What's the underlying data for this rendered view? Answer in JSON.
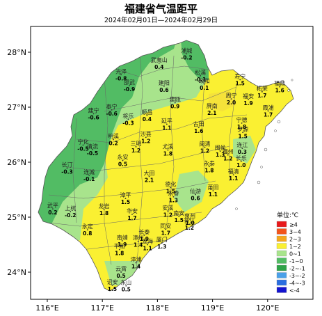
{
  "title": "福建省气温距平",
  "subtitle": "2024年02月01日—2024年02月29日",
  "axes": {
    "x_ticks": [
      {
        "value": 116,
        "label": "116°E"
      },
      {
        "value": 117,
        "label": "117°E"
      },
      {
        "value": 118,
        "label": "118°E"
      },
      {
        "value": 119,
        "label": "119°E"
      },
      {
        "value": 120,
        "label": "120°E"
      }
    ],
    "y_ticks": [
      {
        "value": 28,
        "label": "28°N"
      },
      {
        "value": 27,
        "label": "27°N"
      },
      {
        "value": 26,
        "label": "26°N"
      },
      {
        "value": 25,
        "label": "25°N"
      },
      {
        "value": 24,
        "label": "24°N"
      }
    ],
    "lon_range": [
      115.7,
      120.9
    ],
    "lat_range": [
      23.5,
      28.5
    ]
  },
  "legend": {
    "title": "单位:℃",
    "position": "bottom-right",
    "items": [
      {
        "label": "≥4",
        "color": "#e8191c"
      },
      {
        "label": "3~4",
        "color": "#f2541c"
      },
      {
        "label": "2~3",
        "color": "#f5a71c"
      },
      {
        "label": "1~2",
        "color": "#faf032"
      },
      {
        "label": "0~1",
        "color": "#a8e48c"
      },
      {
        "label": "-1~0",
        "color": "#52bc64"
      },
      {
        "label": "-2~-1",
        "color": "#2ea348"
      },
      {
        "label": "-3~-2",
        "color": "#4aa0e8"
      },
      {
        "label": "-4~-3",
        "color": "#2a6ee0"
      },
      {
        "label": "<-4",
        "color": "#1414d0"
      }
    ]
  },
  "stations": [
    {
      "name": "浦城",
      "value": "-0.2",
      "lon": 118.53,
      "lat": 27.92
    },
    {
      "name": "武夷山",
      "value": "0.4",
      "lon": 118.03,
      "lat": 27.75
    },
    {
      "name": "光泽",
      "value": "-0.8",
      "lon": 117.34,
      "lat": 27.54
    },
    {
      "name": "松溪",
      "value": "-0.1",
      "lon": 118.78,
      "lat": 27.52
    },
    {
      "name": "政和",
      "value": "0.1",
      "lon": 118.85,
      "lat": 27.37
    },
    {
      "name": "邵武",
      "value": "-0.9",
      "lon": 117.49,
      "lat": 27.34
    },
    {
      "name": "建阳",
      "value": "0.6",
      "lon": 118.12,
      "lat": 27.33
    },
    {
      "name": "周宁",
      "value": "2.0",
      "lon": 119.34,
      "lat": 27.1
    },
    {
      "name": "福安",
      "value": "1.9",
      "lon": 119.65,
      "lat": 27.09
    },
    {
      "name": "柘荣",
      "value": "1.7",
      "lon": 119.9,
      "lat": 27.23
    },
    {
      "name": "福鼎",
      "value": "1.6",
      "lon": 120.22,
      "lat": 27.32
    },
    {
      "name": "寿宁",
      "value": "1.5",
      "lon": 119.5,
      "lat": 27.45
    },
    {
      "name": "建瓯",
      "value": "0.9",
      "lon": 118.32,
      "lat": 27.03
    },
    {
      "name": "屏南",
      "value": "2.1",
      "lon": 118.99,
      "lat": 26.91
    },
    {
      "name": "霞浦",
      "value": "1.7",
      "lon": 120.01,
      "lat": 26.88
    },
    {
      "name": "宁德",
      "value": "1.8",
      "lon": 119.53,
      "lat": 26.66
    },
    {
      "name": "建宁",
      "value": "-0.6",
      "lon": 116.84,
      "lat": 26.83
    },
    {
      "name": "泰宁",
      "value": "-0.6",
      "lon": 117.17,
      "lat": 26.9
    },
    {
      "name": "将乐",
      "value": "-0.3",
      "lon": 117.47,
      "lat": 26.73
    },
    {
      "name": "顺昌",
      "value": "0.4",
      "lon": 117.81,
      "lat": 26.8
    },
    {
      "name": "延平",
      "value": "1.1",
      "lon": 118.17,
      "lat": 26.64
    },
    {
      "name": "古田",
      "value": "1.6",
      "lon": 118.75,
      "lat": 26.58
    },
    {
      "name": "罗源",
      "value": "1.5",
      "lon": 119.55,
      "lat": 26.49
    },
    {
      "name": "明溪",
      "value": "0.2",
      "lon": 117.2,
      "lat": 26.36
    },
    {
      "name": "沙县",
      "value": "1.2",
      "lon": 117.79,
      "lat": 26.4
    },
    {
      "name": "三明",
      "value": "1.2",
      "lon": 117.61,
      "lat": 26.23
    },
    {
      "name": "宁化",
      "value": "-0.5",
      "lon": 116.65,
      "lat": 26.26
    },
    {
      "name": "清流",
      "value": "-0.5",
      "lon": 116.82,
      "lat": 26.18
    },
    {
      "name": "尤溪",
      "value": "1.8",
      "lon": 118.19,
      "lat": 26.17
    },
    {
      "name": "闽清",
      "value": "1.2",
      "lon": 118.86,
      "lat": 26.22
    },
    {
      "name": "闽侯",
      "value": "1.3",
      "lon": 119.14,
      "lat": 26.15
    },
    {
      "name": "福州",
      "value": "1.2",
      "lon": 119.28,
      "lat": 26.08
    },
    {
      "name": "连江",
      "value": "0.3",
      "lon": 119.54,
      "lat": 26.2
    },
    {
      "name": "长乐",
      "value": "1.0",
      "lon": 119.52,
      "lat": 25.96
    },
    {
      "name": "永泰",
      "value": "1.8",
      "lon": 118.94,
      "lat": 25.87
    },
    {
      "name": "永安",
      "value": "0.5",
      "lon": 117.37,
      "lat": 25.98
    },
    {
      "name": "福清",
      "value": "1.1",
      "lon": 119.38,
      "lat": 25.72
    },
    {
      "name": "长汀",
      "value": "-0.3",
      "lon": 116.36,
      "lat": 25.84
    },
    {
      "name": "连城",
      "value": "-0.1",
      "lon": 116.76,
      "lat": 25.71
    },
    {
      "name": "大田",
      "value": "2.1",
      "lon": 117.85,
      "lat": 25.69
    },
    {
      "name": "德化",
      "value": "1.5",
      "lon": 118.24,
      "lat": 25.49
    },
    {
      "name": "永春",
      "value": "1.3",
      "lon": 118.29,
      "lat": 25.32
    },
    {
      "name": "仙游",
      "value": "0.6",
      "lon": 118.69,
      "lat": 25.36
    },
    {
      "name": "莆田",
      "value": "1.1",
      "lon": 119.01,
      "lat": 25.43
    },
    {
      "name": "漳平",
      "value": "1.5",
      "lon": 117.42,
      "lat": 25.29
    },
    {
      "name": "武平",
      "value": "0.2",
      "lon": 116.1,
      "lat": 25.1
    },
    {
      "name": "上杭",
      "value": "-0.2",
      "lon": 116.42,
      "lat": 25.05
    },
    {
      "name": "龙岩",
      "value": "1.8",
      "lon": 117.03,
      "lat": 25.09
    },
    {
      "name": "安溪",
      "value": "1.2",
      "lon": 118.19,
      "lat": 25.06
    },
    {
      "name": "南安",
      "value": "1.5",
      "lon": 118.39,
      "lat": 24.96
    },
    {
      "name": "泉州",
      "value": "1.0",
      "lon": 118.59,
      "lat": 24.91
    },
    {
      "name": "晋江",
      "value": "1.2",
      "lon": 118.58,
      "lat": 24.82
    },
    {
      "name": "华安",
      "value": "1.7",
      "lon": 117.54,
      "lat": 25.0
    },
    {
      "name": "永定",
      "value": "0.8",
      "lon": 116.73,
      "lat": 24.72
    },
    {
      "name": "南靖",
      "value": "1.9",
      "lon": 117.36,
      "lat": 24.52
    },
    {
      "name": "长泰",
      "value": "1.9",
      "lon": 117.76,
      "lat": 24.62
    },
    {
      "name": "同安",
      "value": "1.7",
      "lon": 118.15,
      "lat": 24.73
    },
    {
      "name": "厦门",
      "value": "1.3",
      "lon": 118.08,
      "lat": 24.48
    },
    {
      "name": "漳州",
      "value": "1.4",
      "lon": 117.65,
      "lat": 24.51
    },
    {
      "name": "平和",
      "value": "1.8",
      "lon": 117.31,
      "lat": 24.36
    },
    {
      "name": "龙海",
      "value": "1.1",
      "lon": 117.82,
      "lat": 24.45
    },
    {
      "name": "漳浦",
      "value": "1.4",
      "lon": 117.61,
      "lat": 24.12
    },
    {
      "name": "云霄",
      "value": "0.5",
      "lon": 117.34,
      "lat": 23.95
    },
    {
      "name": "东山",
      "value": "0.5",
      "lon": 117.43,
      "lat": 23.7
    },
    {
      "name": "诏安",
      "value": "1.5",
      "lon": 117.18,
      "lat": 23.71
    }
  ]
}
